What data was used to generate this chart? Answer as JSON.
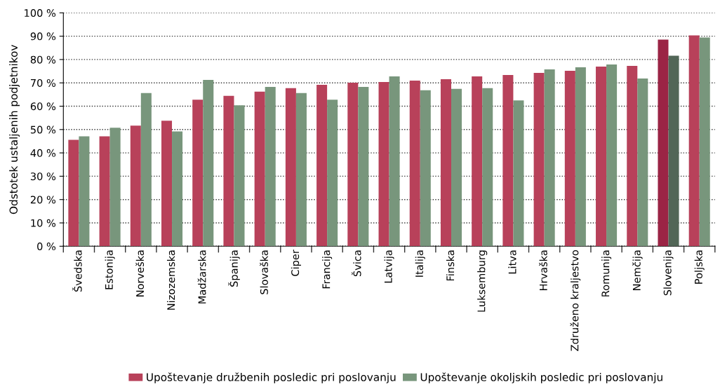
{
  "chart_data": {
    "type": "bar",
    "ylabel": "Odstotek ustaljenih podjetnikov",
    "categories": [
      "Švedska",
      "Estonija",
      "Norveška",
      "Nizozemska",
      "Madžarska",
      "Španija",
      "Slovaška",
      "Ciper",
      "Francija",
      "Švica",
      "Latvija",
      "Italija",
      "Finska",
      "Luksemburg",
      "Litva",
      "Hrvaška",
      "Združeno kraljestvo",
      "Romunija",
      "Nemčija",
      "Slovenija",
      "Poljska"
    ],
    "series": [
      {
        "name": "Upoštevanje družbenih posledic pri poslovanju",
        "color": "#b8415a",
        "colors": [
          "#b8415a",
          "#b8415a",
          "#b8415a",
          "#b8415a",
          "#b8415a",
          "#b8415a",
          "#b8415a",
          "#b8415a",
          "#b8415a",
          "#b8415a",
          "#b8415a",
          "#b8415a",
          "#b8415a",
          "#b8415a",
          "#b8415a",
          "#b8415a",
          "#b8415a",
          "#b8415a",
          "#b8415a",
          "#9b2445",
          "#b8415a"
        ],
        "values": [
          45.6,
          47.1,
          51.7,
          53.8,
          62.8,
          64.4,
          66.2,
          67.7,
          69.2,
          70.1,
          70.4,
          71.0,
          71.6,
          72.8,
          73.4,
          74.3,
          75.2,
          77.0,
          77.3,
          88.5,
          90.3
        ]
      },
      {
        "name": "Upoštevanje okoljskih posledic pri poslovanju",
        "color": "#78967c",
        "colors": [
          "#78967c",
          "#78967c",
          "#78967c",
          "#78967c",
          "#78967c",
          "#78967c",
          "#78967c",
          "#78967c",
          "#78967c",
          "#78967c",
          "#78967c",
          "#78967c",
          "#78967c",
          "#78967c",
          "#78967c",
          "#78967c",
          "#78967c",
          "#78967c",
          "#78967c",
          "#526657",
          "#78967c"
        ],
        "values": [
          47.1,
          50.8,
          65.6,
          49.2,
          71.3,
          60.4,
          68.3,
          65.6,
          62.8,
          68.3,
          72.8,
          66.8,
          67.4,
          67.7,
          62.5,
          75.8,
          76.7,
          77.9,
          71.9,
          81.6,
          89.4
        ]
      }
    ],
    "ylim": [
      0,
      100
    ],
    "yticks": [
      {
        "value": 0,
        "label": "0 %"
      },
      {
        "value": 10,
        "label": "10 %"
      },
      {
        "value": 20,
        "label": "20 %"
      },
      {
        "value": 30,
        "label": "30 %"
      },
      {
        "value": 40,
        "label": "40 %"
      },
      {
        "value": 50,
        "label": "50 %"
      },
      {
        "value": 60,
        "label": "60 %"
      },
      {
        "value": 70,
        "label": "70 %"
      },
      {
        "value": 80,
        "label": "80 %"
      },
      {
        "value": 90,
        "label": "90 %"
      },
      {
        "value": 100,
        "label": "100 %"
      }
    ],
    "grid": "y",
    "legend": "bottom"
  }
}
